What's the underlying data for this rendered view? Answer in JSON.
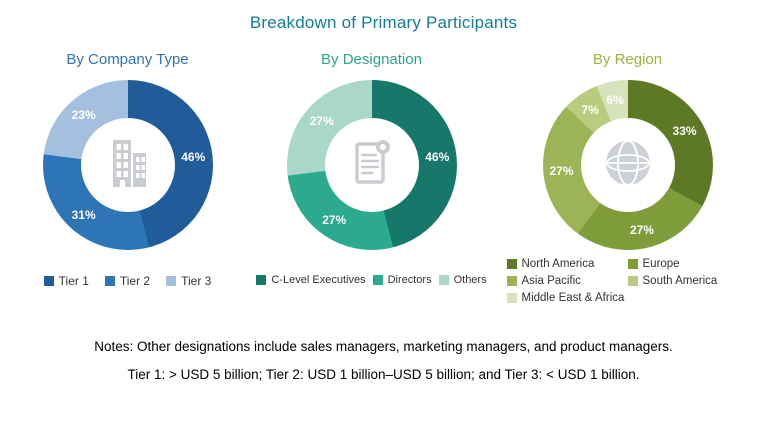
{
  "title": "Breakdown of Primary Participants",
  "title_color": "#117E93",
  "notes": {
    "line1": "Notes: Other designations include sales managers, marketing managers, and product managers.",
    "line2": "Tier 1: > USD 5 billion; Tier 2: USD 1 billion–USD 5 billion; and Tier 3: < USD 1 billion."
  },
  "chart_data": [
    {
      "type": "pie",
      "variant": "donut",
      "title": "By Company Type",
      "title_color": "#2E75B6",
      "center_icon": "building-icon",
      "legend_position": "bottom",
      "labels": [
        "Tier 1",
        "Tier 2",
        "Tier 3"
      ],
      "values": [
        46,
        31,
        23
      ],
      "value_labels": [
        "46%",
        "31%",
        "23%"
      ],
      "colors": [
        "#1F5C99",
        "#2E75B6",
        "#A5C0DE"
      ],
      "start_angle_deg": 0
    },
    {
      "type": "pie",
      "variant": "donut",
      "title": "By Designation",
      "title_color": "#2BA78C",
      "center_icon": "document-icon",
      "legend_position": "bottom",
      "labels": [
        "C-Level Executives",
        "Directors",
        "Others"
      ],
      "values": [
        46,
        27,
        27
      ],
      "value_labels": [
        "46%",
        "27%",
        "27%"
      ],
      "colors": [
        "#16786A",
        "#2BAA8E",
        "#A9D8CB"
      ],
      "start_angle_deg": 0
    },
    {
      "type": "pie",
      "variant": "donut",
      "title": "By Region",
      "title_color": "#9BB53C",
      "center_icon": "globe-icon",
      "legend_position": "bottom",
      "labels": [
        "North America",
        "Europe",
        "Asia Pacific",
        "South America",
        "Middle East & Africa"
      ],
      "values": [
        33,
        27,
        27,
        7,
        6
      ],
      "value_labels": [
        "33%",
        "27%",
        "27%",
        "7%",
        "6%"
      ],
      "colors": [
        "#5E7926",
        "#7F9C3B",
        "#9CB356",
        "#B9CC7D",
        "#D8E2BC"
      ],
      "start_angle_deg": 0
    }
  ]
}
